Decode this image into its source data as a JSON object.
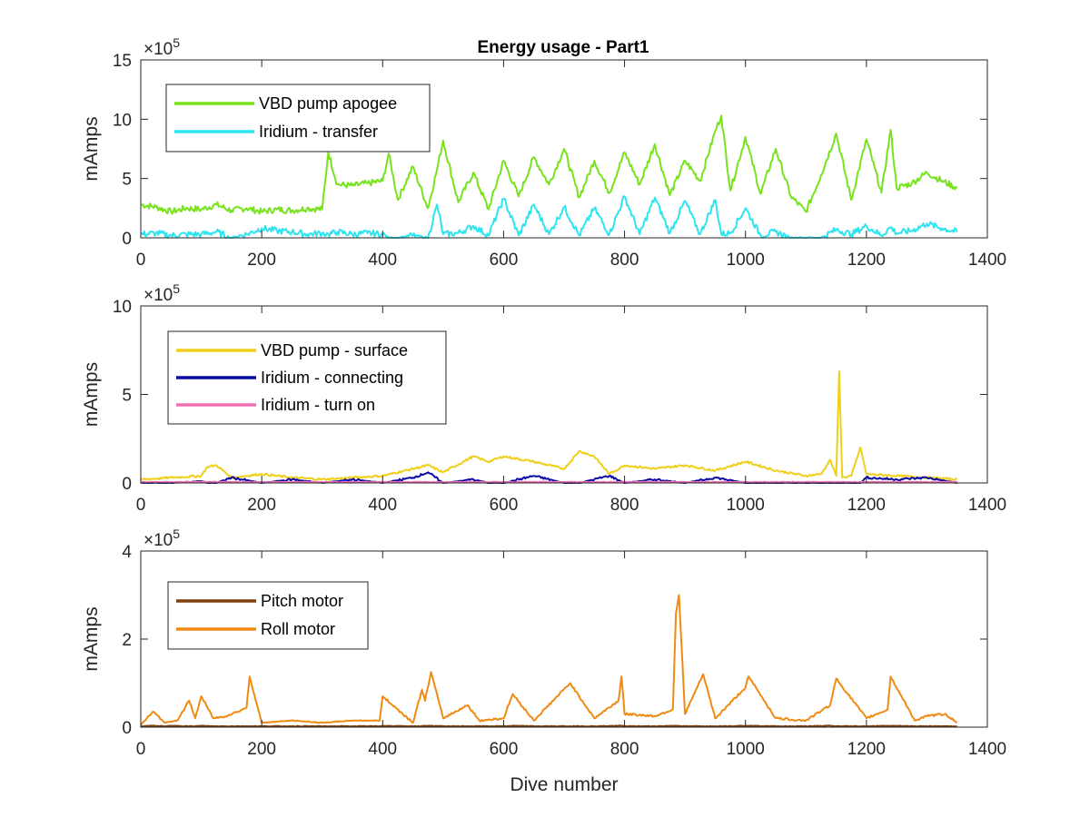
{
  "figure_title": "Energy usage - Part1",
  "chart_data": [
    {
      "type": "line",
      "title": "Energy usage - Part1",
      "xlabel": "",
      "ylabel": "mAmps",
      "xlim": [
        0,
        1400
      ],
      "ylim": [
        0,
        15
      ],
      "y_exponent_label": "×10",
      "y_exponent": "5",
      "xticks": [
        "0",
        "200",
        "400",
        "600",
        "800",
        "1000",
        "1200",
        "1400"
      ],
      "yticks": [
        "0",
        "5",
        "10",
        "15"
      ],
      "legend_position": "top-left",
      "x": [
        0,
        25,
        50,
        75,
        100,
        125,
        150,
        175,
        200,
        225,
        250,
        275,
        300,
        310,
        325,
        350,
        375,
        400,
        410,
        425,
        450,
        475,
        490,
        500,
        525,
        550,
        575,
        600,
        625,
        650,
        675,
        700,
        725,
        750,
        775,
        800,
        825,
        850,
        875,
        900,
        925,
        950,
        960,
        975,
        1000,
        1025,
        1050,
        1075,
        1100,
        1125,
        1150,
        1175,
        1200,
        1225,
        1240,
        1250,
        1275,
        1300,
        1325,
        1350
      ],
      "series": [
        {
          "name": "VBD pump apogee",
          "color": "#77e31c",
          "values": [
            2.8,
            2.6,
            2.2,
            2.5,
            2.4,
            2.8,
            2.3,
            2.5,
            2.2,
            2.4,
            2.3,
            2.5,
            2.4,
            7.2,
            4.5,
            4.4,
            4.6,
            4.8,
            7.1,
            3.2,
            6.0,
            2.5,
            5.8,
            8.2,
            3.0,
            5.5,
            2.4,
            6.5,
            3.5,
            6.8,
            4.5,
            7.5,
            3.4,
            6.5,
            3.8,
            7.2,
            4.5,
            7.9,
            3.6,
            6.5,
            4.8,
            9.0,
            10.3,
            4.0,
            8.5,
            3.7,
            7.5,
            3.5,
            2.2,
            5.3,
            8.8,
            3.2,
            8.3,
            3.8,
            9.1,
            4.2,
            4.6,
            5.5,
            4.8,
            4.2
          ]
        },
        {
          "name": "Iridium - transfer",
          "color": "#2de5f0",
          "values": [
            0.3,
            0.4,
            0.2,
            0.3,
            0.3,
            0.5,
            0.0,
            0.3,
            0.8,
            0.6,
            0.5,
            0.3,
            0.4,
            0.3,
            0.5,
            0.3,
            0.4,
            0.3,
            0.0,
            0.0,
            0.2,
            0.0,
            2.8,
            0.3,
            0.4,
            1.0,
            0.2,
            3.3,
            0.2,
            2.8,
            0.3,
            2.6,
            0.2,
            2.5,
            0.3,
            3.5,
            0.3,
            3.4,
            0.4,
            3.1,
            0.3,
            3.2,
            0.3,
            0.4,
            2.5,
            0.2,
            0.5,
            0.0,
            0.0,
            0.0,
            0.7,
            0.3,
            1.0,
            0.2,
            0.9,
            0.4,
            0.6,
            1.2,
            0.8,
            0.5
          ]
        }
      ]
    },
    {
      "type": "line",
      "title": "",
      "xlabel": "",
      "ylabel": "mAmps",
      "xlim": [
        0,
        1400
      ],
      "ylim": [
        0,
        10
      ],
      "y_exponent_label": "×10",
      "y_exponent": "5",
      "xticks": [
        "0",
        "200",
        "400",
        "600",
        "800",
        "1000",
        "1200",
        "1400"
      ],
      "yticks": [
        "0",
        "5",
        "10"
      ],
      "legend_position": "top-left",
      "x": [
        0,
        50,
        100,
        110,
        125,
        150,
        200,
        250,
        300,
        350,
        400,
        450,
        475,
        500,
        550,
        575,
        600,
        650,
        700,
        725,
        750,
        775,
        800,
        850,
        900,
        950,
        1000,
        1050,
        1100,
        1125,
        1140,
        1150,
        1155,
        1160,
        1175,
        1190,
        1200,
        1250,
        1300,
        1350
      ],
      "series": [
        {
          "name": "VBD pump - surface",
          "color": "#f0cf1a",
          "values": [
            0.2,
            0.3,
            0.4,
            0.9,
            1.0,
            0.3,
            0.5,
            0.3,
            0.2,
            0.3,
            0.4,
            0.8,
            1.0,
            0.6,
            1.5,
            1.2,
            1.5,
            1.2,
            0.8,
            1.8,
            1.5,
            0.5,
            1.0,
            0.8,
            1.0,
            0.7,
            1.2,
            0.7,
            0.4,
            0.5,
            1.3,
            0.4,
            6.3,
            0.3,
            0.4,
            2.0,
            0.5,
            0.4,
            0.3,
            0.2
          ]
        },
        {
          "name": "Iridium - connecting",
          "color": "#0a0aa8",
          "values": [
            0.0,
            0.0,
            0.1,
            0.0,
            0.0,
            0.3,
            0.0,
            0.2,
            0.0,
            0.2,
            0.0,
            0.3,
            0.6,
            0.0,
            0.2,
            0.0,
            0.0,
            0.4,
            0.0,
            0.0,
            0.2,
            0.4,
            0.0,
            0.2,
            0.0,
            0.3,
            0.0,
            0.0,
            0.0,
            0.0,
            0.0,
            0.0,
            0.0,
            0.0,
            0.0,
            0.0,
            0.3,
            0.2,
            0.3,
            0.0
          ]
        },
        {
          "name": "Iridium - turn on",
          "color": "#f06fb4",
          "values": [
            0.05,
            0.05,
            0.05,
            0.05,
            0.05,
            0.05,
            0.05,
            0.05,
            0.05,
            0.05,
            0.05,
            0.05,
            0.05,
            0.05,
            0.05,
            0.05,
            0.05,
            0.05,
            0.05,
            0.05,
            0.05,
            0.05,
            0.05,
            0.05,
            0.05,
            0.05,
            0.05,
            0.05,
            0.05,
            0.05,
            0.05,
            0.05,
            0.05,
            0.05,
            0.05,
            0.05,
            0.05,
            0.05,
            0.05,
            0.05
          ]
        }
      ]
    },
    {
      "type": "line",
      "title": "",
      "xlabel": "Dive number",
      "ylabel": "mAmps",
      "xlim": [
        0,
        1400
      ],
      "ylim": [
        0,
        4
      ],
      "y_exponent_label": "×10",
      "y_exponent": "5",
      "xticks": [
        "0",
        "200",
        "400",
        "600",
        "800",
        "1000",
        "1200",
        "1400"
      ],
      "yticks": [
        "0",
        "2",
        "4"
      ],
      "legend_position": "top-left",
      "x": [
        0,
        20,
        40,
        60,
        80,
        90,
        100,
        120,
        140,
        160,
        175,
        180,
        200,
        250,
        300,
        350,
        395,
        400,
        450,
        465,
        470,
        480,
        500,
        540,
        560,
        600,
        615,
        650,
        710,
        750,
        790,
        795,
        800,
        850,
        880,
        885,
        890,
        900,
        930,
        950,
        1000,
        1005,
        1050,
        1100,
        1140,
        1150,
        1200,
        1235,
        1240,
        1280,
        1300,
        1330,
        1350
      ],
      "series": [
        {
          "name": "Pitch motor",
          "color": "#7b3f10",
          "values": [
            0.02,
            0.03,
            0.02,
            0.03,
            0.02,
            0.02,
            0.03,
            0.02,
            0.02,
            0.02,
            0.02,
            0.02,
            0.02,
            0.02,
            0.02,
            0.02,
            0.02,
            0.03,
            0.02,
            0.02,
            0.03,
            0.03,
            0.02,
            0.02,
            0.02,
            0.02,
            0.03,
            0.02,
            0.02,
            0.02,
            0.03,
            0.03,
            0.02,
            0.02,
            0.03,
            0.03,
            0.03,
            0.02,
            0.02,
            0.02,
            0.03,
            0.03,
            0.02,
            0.02,
            0.03,
            0.02,
            0.02,
            0.03,
            0.03,
            0.02,
            0.02,
            0.02,
            0.02
          ]
        },
        {
          "name": "Roll motor",
          "color": "#f08a12",
          "values": [
            0.05,
            0.35,
            0.1,
            0.15,
            0.6,
            0.2,
            0.7,
            0.2,
            0.25,
            0.35,
            0.45,
            1.15,
            0.1,
            0.15,
            0.1,
            0.15,
            0.15,
            0.7,
            0.1,
            0.85,
            0.6,
            1.25,
            0.2,
            0.5,
            0.15,
            0.2,
            0.75,
            0.15,
            1.0,
            0.2,
            0.6,
            1.15,
            0.3,
            0.25,
            0.4,
            2.6,
            3.0,
            0.3,
            1.2,
            0.2,
            0.9,
            1.15,
            0.2,
            0.15,
            0.5,
            1.1,
            0.2,
            0.4,
            1.15,
            0.15,
            0.25,
            0.3,
            0.1
          ]
        }
      ]
    }
  ]
}
